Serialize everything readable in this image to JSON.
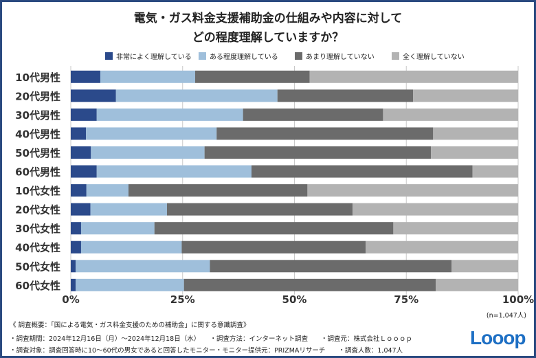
{
  "title_line1": "電気・ガス料金支援補助金の仕組みや内容に対して",
  "title_line2": "どの程度理解していますか？",
  "chart_data": {
    "type": "bar",
    "orientation": "horizontal",
    "stacked": true,
    "categories": [
      "10代男性",
      "20代男性",
      "30代男性",
      "40代男性",
      "50代男性",
      "60代男性",
      "10代女性",
      "20代女性",
      "30代女性",
      "40代女性",
      "50代女性",
      "60代女性"
    ],
    "series": [
      {
        "name": "非常によく理解している",
        "color": "#2b4a8b",
        "values": [
          6.6,
          10.1,
          5.8,
          3.4,
          4.5,
          5.8,
          3.5,
          4.4,
          2.3,
          2.3,
          1.1,
          1.1
        ]
      },
      {
        "name": "ある程度理解している",
        "color": "#9fbfdb",
        "values": [
          21.2,
          36.1,
          32.7,
          29.2,
          25.4,
          34.6,
          9.4,
          17.1,
          16.4,
          22.5,
          30.0,
          24.2
        ]
      },
      {
        "name": "あまり理解していない",
        "color": "#6b6b6b",
        "values": [
          25.6,
          30.3,
          31.3,
          48.4,
          50.6,
          49.4,
          40.0,
          41.5,
          53.4,
          41.1,
          54.0,
          56.3
        ]
      },
      {
        "name": "全く理解していない",
        "color": "#b3b3b3",
        "values": [
          46.6,
          23.5,
          30.2,
          19.0,
          19.5,
          10.2,
          47.1,
          37.0,
          27.9,
          34.1,
          14.9,
          18.4
        ]
      }
    ],
    "xlim": [
      0,
      100
    ],
    "xticks": [
      "0%",
      "25%",
      "50%",
      "75%",
      "100%"
    ],
    "grid": true,
    "legend": "top"
  },
  "sample_note": "(n=1,047人)",
  "footer": {
    "line1": "《 調査概要：「国による電気・ガス料金支援のための補助金」に関する意識調査》",
    "line2": "・調査期間：2024年12月16日（月）～2024年12月18日（水）　　・調査方法：インターネット調査　　・調査元：株式会社Ｌｏｏｏｐ",
    "line3": "・調査対象：調査回答時に10～60代の男女であると回答したモニター・モニター提供元：PRIZMAリサーチ　　・調査人数：1,047人"
  },
  "logo_text": "Looop"
}
